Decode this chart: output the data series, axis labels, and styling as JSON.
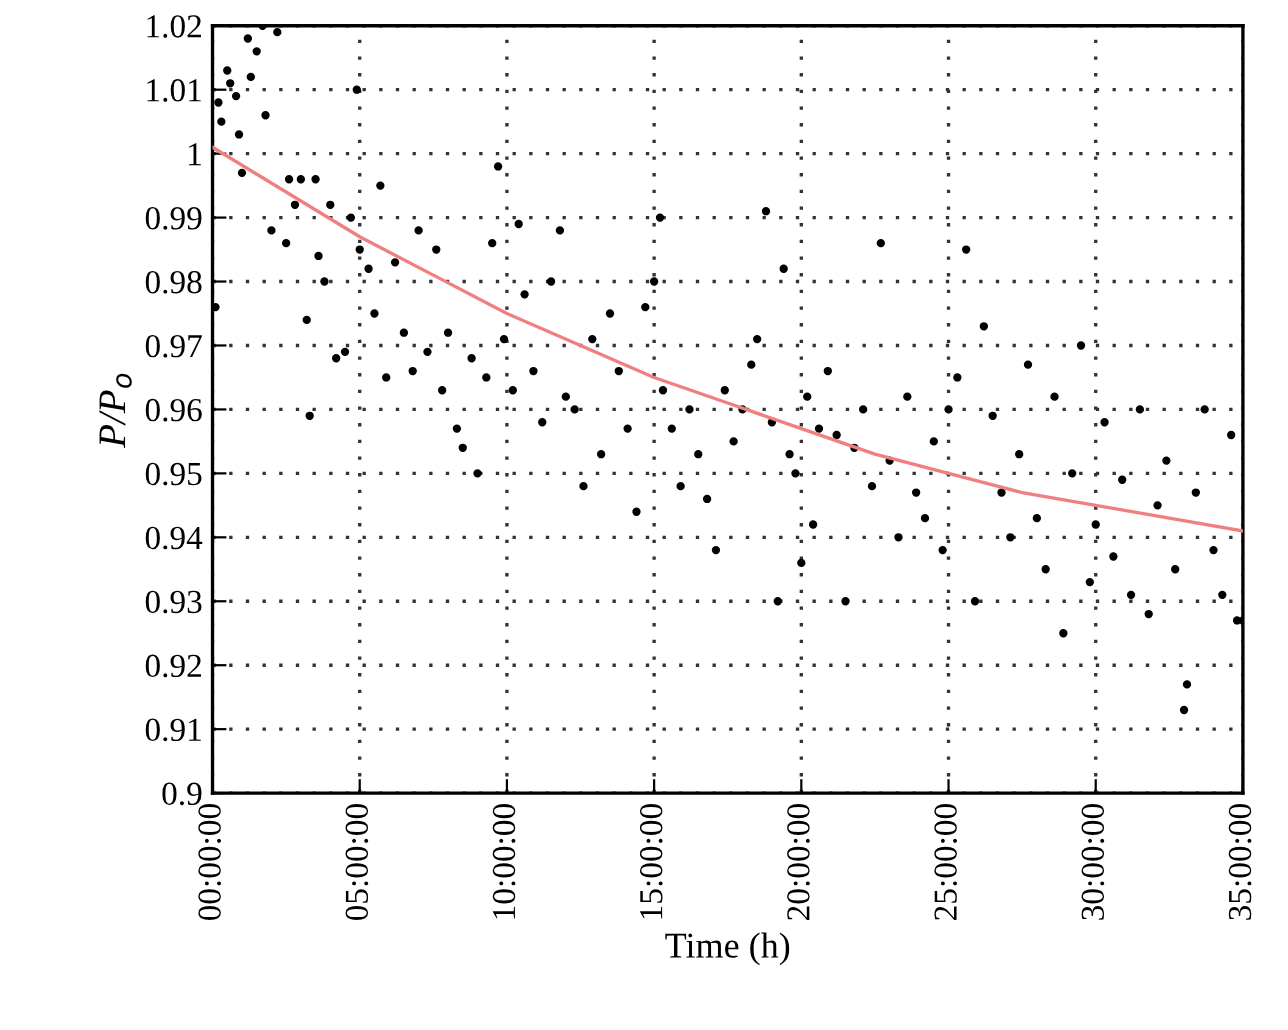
{
  "chart_data": {
    "type": "scatter",
    "xlabel": "Time (h)",
    "ylabel": "P/P$_{o}$",
    "xlim": [
      0,
      35
    ],
    "ylim": [
      0.9,
      1.02
    ],
    "xticks": [
      {
        "value": 0,
        "label": "00:00:00"
      },
      {
        "value": 5,
        "label": "05:00:00"
      },
      {
        "value": 10,
        "label": "10:00:00"
      },
      {
        "value": 15,
        "label": "15:00:00"
      },
      {
        "value": 20,
        "label": "20:00:00"
      },
      {
        "value": 25,
        "label": "25:00:00"
      },
      {
        "value": 30,
        "label": "30:00:00"
      },
      {
        "value": 35,
        "label": "35:00:00"
      }
    ],
    "yticks": [
      0.9,
      0.91,
      0.92,
      0.93,
      0.94,
      0.95,
      0.96,
      0.97,
      0.98,
      0.99,
      1,
      1.01,
      1.02
    ],
    "grid": true,
    "marker": "circle",
    "series": [
      {
        "color": "#000000",
        "x": [
          0.1,
          0.2,
          0.3,
          0.5,
          0.6,
          0.8,
          0.9,
          1.0,
          1.2,
          1.3,
          1.5,
          1.7,
          1.8,
          2.0,
          2.2,
          2.5,
          2.6,
          2.8,
          3.0,
          3.2,
          3.3,
          3.5,
          3.6,
          3.8,
          4.0,
          4.2,
          4.5,
          4.7,
          4.9,
          5.0,
          5.3,
          5.5,
          5.7,
          5.9,
          6.2,
          6.5,
          6.8,
          7.0,
          7.3,
          7.6,
          7.8,
          8.0,
          8.3,
          8.5,
          8.8,
          9.0,
          9.3,
          9.5,
          9.7,
          9.9,
          10.2,
          10.4,
          10.6,
          10.9,
          11.2,
          11.5,
          11.8,
          12.0,
          12.3,
          12.6,
          12.9,
          13.2,
          13.5,
          13.8,
          14.1,
          14.4,
          14.7,
          15.0,
          15.2,
          15.3,
          15.6,
          15.9,
          16.2,
          16.5,
          16.8,
          17.1,
          17.4,
          17.7,
          18.0,
          18.3,
          18.5,
          18.8,
          19.0,
          19.2,
          19.4,
          19.6,
          19.8,
          20.0,
          20.2,
          20.4,
          20.6,
          20.9,
          21.2,
          21.5,
          21.8,
          22.1,
          22.4,
          22.7,
          23.0,
          23.3,
          23.6,
          23.9,
          24.2,
          24.5,
          24.8,
          25.0,
          25.3,
          25.6,
          25.9,
          26.2,
          26.5,
          26.8,
          27.1,
          27.4,
          27.7,
          28.0,
          28.3,
          28.6,
          28.9,
          29.2,
          29.5,
          29.8,
          30.0,
          30.3,
          30.6,
          30.9,
          31.2,
          31.5,
          31.8,
          32.1,
          32.4,
          32.7,
          33.0,
          33.1,
          33.4,
          33.7,
          34.0,
          34.3,
          34.6,
          34.8,
          35.0
        ],
        "values": [
          0.976,
          1.008,
          1.005,
          1.013,
          1.011,
          1.009,
          1.003,
          0.997,
          1.018,
          1.012,
          1.016,
          1.02,
          1.006,
          0.988,
          1.019,
          0.986,
          0.996,
          0.992,
          0.996,
          0.974,
          0.959,
          0.996,
          0.984,
          0.98,
          0.992,
          0.968,
          0.969,
          0.99,
          1.01,
          0.985,
          0.982,
          0.975,
          0.995,
          0.965,
          0.983,
          0.972,
          0.966,
          0.988,
          0.969,
          0.985,
          0.963,
          0.972,
          0.957,
          0.954,
          0.968,
          0.95,
          0.965,
          0.986,
          0.998,
          0.971,
          0.963,
          0.989,
          0.978,
          0.966,
          0.958,
          0.98,
          0.988,
          0.962,
          0.96,
          0.948,
          0.971,
          0.953,
          0.975,
          0.966,
          0.957,
          0.944,
          0.976,
          0.98,
          0.99,
          0.963,
          0.957,
          0.948,
          0.96,
          0.953,
          0.946,
          0.938,
          0.963,
          0.955,
          0.96,
          0.967,
          0.971,
          0.991,
          0.958,
          0.93,
          0.982,
          0.953,
          0.95,
          0.936,
          0.962,
          0.942,
          0.957,
          0.966,
          0.956,
          0.93,
          0.954,
          0.96,
          0.948,
          0.986,
          0.952,
          0.94,
          0.962,
          0.947,
          0.943,
          0.955,
          0.938,
          0.96,
          0.965,
          0.985,
          0.93,
          0.973,
          0.959,
          0.947,
          0.94,
          0.953,
          0.967,
          0.943,
          0.935,
          0.962,
          0.925,
          0.95,
          0.97,
          0.933,
          0.942,
          0.958,
          0.937,
          0.949,
          0.931,
          0.96,
          0.928,
          0.945,
          0.952,
          0.935,
          0.913,
          0.917,
          0.947,
          0.96,
          0.938,
          0.931,
          0.956,
          0.927,
          0.927
        ]
      },
      {
        "type": "line",
        "color": "#f08080",
        "marker": "none",
        "line_style": "solid",
        "x": [
          0,
          2.5,
          5,
          7.5,
          10,
          12.5,
          15,
          17.5,
          20,
          22.5,
          25,
          27.5,
          30,
          32.5,
          35
        ],
        "values": [
          1.001,
          0.994,
          0.987,
          0.981,
          0.975,
          0.97,
          0.965,
          0.961,
          0.957,
          0.953,
          0.95,
          0.947,
          0.945,
          0.943,
          0.941
        ]
      }
    ]
  }
}
